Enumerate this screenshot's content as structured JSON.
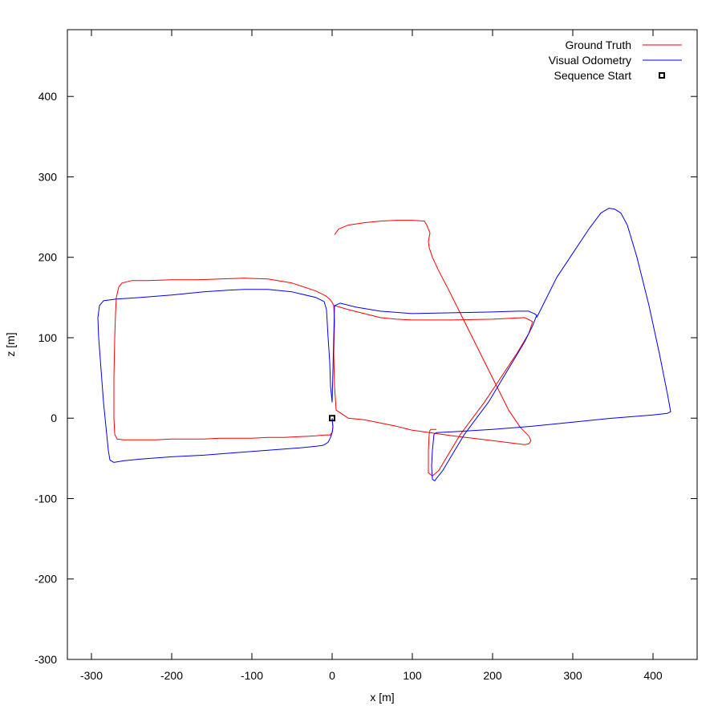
{
  "chart_data": {
    "type": "line",
    "xlabel": "x [m]",
    "ylabel": "z [m]",
    "xlim": [
      -330,
      455
    ],
    "ylim": [
      -300,
      483
    ],
    "xticks": [
      -300,
      -200,
      -100,
      0,
      100,
      200,
      300,
      400
    ],
    "yticks": [
      -300,
      -200,
      -100,
      0,
      100,
      200,
      300,
      400
    ],
    "grid": false,
    "legend_position": "top-right",
    "series": [
      {
        "name": "Ground Truth",
        "color": "#ff0000",
        "x": [
          0,
          1,
          0,
          -2,
          -3,
          -2,
          -5,
          -8,
          -10,
          -20,
          -40,
          -60,
          -80,
          -100,
          -120,
          -140,
          -160,
          -180,
          -200,
          -220,
          -240,
          -260,
          -268,
          -271,
          -272,
          -272,
          -271,
          -270,
          -269,
          -266,
          -262,
          -250,
          -230,
          -200,
          -170,
          -140,
          -110,
          -80,
          -50,
          -20,
          -8,
          -3,
          0,
          2,
          3,
          2,
          3,
          5,
          20,
          40,
          60,
          80,
          100,
          150,
          200,
          240,
          245,
          248,
          245,
          235,
          220,
          205,
          190,
          175,
          160,
          145,
          132,
          125,
          121,
          120,
          122,
          118,
          115,
          100,
          80,
          60,
          40,
          20,
          8,
          3
        ],
        "y": [
          0,
          -12,
          -18,
          -20,
          -21,
          -21,
          -21,
          -21,
          -21,
          -22,
          -23,
          -24,
          -24,
          -25,
          -25,
          -25,
          -26,
          -26,
          -26,
          -27,
          -27,
          -27,
          -26,
          -20,
          0,
          50,
          100,
          130,
          150,
          163,
          168,
          171,
          171,
          172,
          172,
          173,
          174,
          173,
          168,
          158,
          152,
          148,
          144,
          140,
          120,
          80,
          40,
          10,
          0,
          -2,
          -6,
          -10,
          -15,
          -22,
          -28,
          -33,
          -32,
          -28,
          -22,
          -12,
          10,
          40,
          70,
          100,
          130,
          160,
          185,
          200,
          212,
          220,
          230,
          240,
          245,
          246,
          246,
          245,
          243,
          240,
          235,
          228
        ],
        "x_gt_loop": [
          3,
          20,
          40,
          60,
          80,
          100,
          150,
          200,
          240,
          250,
          245,
          230,
          210,
          190,
          175,
          160,
          145,
          133,
          125,
          120,
          120,
          121,
          122,
          123,
          125,
          127,
          130
        ],
        "y_gt_loop": [
          140,
          135,
          130,
          125,
          123,
          122,
          122,
          123,
          125,
          120,
          105,
          80,
          50,
          20,
          0,
          -20,
          -45,
          -65,
          -72,
          -68,
          -40,
          -20,
          -15,
          -14,
          -14,
          -14,
          -14
        ]
      },
      {
        "name": "Visual Odometry",
        "color": "#0000ff",
        "x": [
          0,
          1,
          0,
          -2,
          -5,
          -8,
          -10,
          -12,
          -20,
          -40,
          -80,
          -120,
          -160,
          -200,
          -240,
          -260,
          -272,
          -277,
          -279,
          -282,
          -285,
          -288,
          -291,
          -292,
          -290,
          -285,
          -270,
          -240,
          -200,
          -160,
          -130,
          -110,
          -80,
          -50,
          -20,
          -10,
          -7,
          -5,
          -3,
          -2,
          0,
          3,
          10,
          30,
          60,
          100,
          150,
          200,
          230,
          245,
          252,
          255,
          250,
          240,
          225,
          210,
          195,
          180,
          165,
          150,
          138,
          130,
          128,
          125,
          124,
          125,
          127
        ],
        "y": [
          0,
          -10,
          -18,
          -24,
          -30,
          -32,
          -33,
          -34,
          -35,
          -37,
          -40,
          -43,
          -46,
          -48,
          -51,
          -53,
          -55,
          -52,
          -40,
          -10,
          20,
          60,
          100,
          125,
          140,
          146,
          148,
          150,
          153,
          157,
          159,
          160,
          160,
          157,
          150,
          145,
          135,
          100,
          70,
          40,
          20,
          140,
          143,
          138,
          133,
          130,
          131,
          132,
          133,
          133,
          130,
          128,
          115,
          95,
          70,
          45,
          20,
          0,
          -20,
          -45,
          -65,
          -75,
          -78,
          -76,
          -60,
          -40,
          -20
        ],
        "x_vo_loop": [
          127,
          130,
          150,
          200,
          250,
          300,
          350,
          400,
          418,
          422,
          418,
          408,
          395,
          380,
          368,
          360,
          352,
          345,
          335,
          320,
          300,
          280,
          265,
          255
        ],
        "y_vo_loop": [
          -20,
          -18,
          -17,
          -14,
          -10,
          -5,
          0,
          4,
          6,
          8,
          30,
          80,
          140,
          200,
          240,
          255,
          260,
          261,
          255,
          235,
          205,
          175,
          145,
          125
        ]
      },
      {
        "name": "Sequence Start",
        "color": "#000000",
        "marker": "square",
        "x": [
          0
        ],
        "y": [
          0
        ]
      }
    ]
  }
}
